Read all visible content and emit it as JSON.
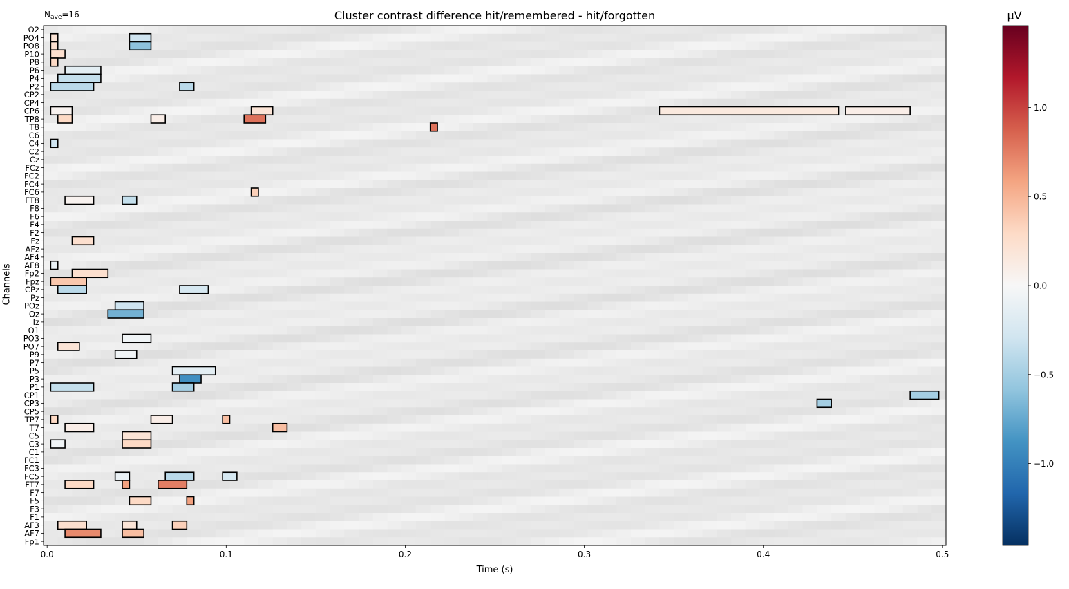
{
  "annotation": {
    "nave_prefix": "N",
    "nave_sub": "ave",
    "nave_suffix": "=16"
  },
  "chart_data": {
    "type": "heatmap",
    "title": "Cluster contrast difference hit/remembered - hit/forgotten",
    "xlabel": "Time (s)",
    "ylabel": "Channels",
    "colorbar_label": "µV",
    "xlim": [
      -0.002,
      0.502
    ],
    "x_ticks": [
      0.0,
      0.1,
      0.2,
      0.3,
      0.4,
      0.5
    ],
    "x_tick_labels": [
      "0.0",
      "0.1",
      "0.2",
      "0.3",
      "0.4",
      "0.5"
    ],
    "clim": [
      -1.46,
      1.46
    ],
    "colorbar_ticks": [
      1.0,
      0.5,
      0.0,
      -0.5,
      -1.0
    ],
    "colorbar_tick_labels": [
      "1.0",
      "0.5",
      "0.0",
      "−0.5",
      "−1.0"
    ],
    "colormap": [
      "#053061",
      "#2166ac",
      "#4393c3",
      "#92c5de",
      "#d1e5f0",
      "#f7f7f7",
      "#fddbc7",
      "#f4a582",
      "#d6604d",
      "#b2182b",
      "#67001f"
    ],
    "channels": [
      "O2",
      "PO4",
      "PO8",
      "P10",
      "P8",
      "P6",
      "P4",
      "P2",
      "CP2",
      "CP4",
      "CP6",
      "TP8",
      "T8",
      "C6",
      "C4",
      "C2",
      "Cz",
      "FCz",
      "FC2",
      "FC4",
      "FC6",
      "FT8",
      "F8",
      "F6",
      "F4",
      "F2",
      "Fz",
      "AFz",
      "AF4",
      "AF8",
      "Fp2",
      "Fpz",
      "CPz",
      "Pz",
      "POz",
      "Oz",
      "Iz",
      "O1",
      "PO3",
      "PO7",
      "P9",
      "P7",
      "P5",
      "P3",
      "P1",
      "CP1",
      "CP3",
      "CP5",
      "TP7",
      "T7",
      "C5",
      "C3",
      "C1",
      "FC1",
      "FC3",
      "FC5",
      "FT7",
      "F7",
      "F5",
      "F3",
      "F1",
      "AF3",
      "AF7",
      "Fp1"
    ],
    "clusters": [
      {
        "channel": "PO4",
        "t0": 0.002,
        "t1": 0.006,
        "value": 0.2
      },
      {
        "channel": "PO8",
        "t0": 0.002,
        "t1": 0.006,
        "value": 0.25
      },
      {
        "channel": "P10",
        "t0": 0.002,
        "t1": 0.01,
        "value": 0.25
      },
      {
        "channel": "P8",
        "t0": 0.002,
        "t1": 0.006,
        "value": 0.3
      },
      {
        "channel": "PO4",
        "t0": 0.046,
        "t1": 0.058,
        "value": -0.3
      },
      {
        "channel": "PO8",
        "t0": 0.046,
        "t1": 0.058,
        "value": -0.6
      },
      {
        "channel": "P6",
        "t0": 0.01,
        "t1": 0.03,
        "value": -0.15
      },
      {
        "channel": "P4",
        "t0": 0.006,
        "t1": 0.03,
        "value": -0.35
      },
      {
        "channel": "P2",
        "t0": 0.002,
        "t1": 0.026,
        "value": -0.4
      },
      {
        "channel": "P2",
        "t0": 0.074,
        "t1": 0.082,
        "value": -0.4
      },
      {
        "channel": "CP6",
        "t0": 0.002,
        "t1": 0.014,
        "value": 0.05
      },
      {
        "channel": "TP8",
        "t0": 0.006,
        "t1": 0.014,
        "value": 0.3
      },
      {
        "channel": "CP6",
        "t0": 0.114,
        "t1": 0.126,
        "value": 0.2
      },
      {
        "channel": "TP8",
        "t0": 0.11,
        "t1": 0.122,
        "value": 0.8
      },
      {
        "channel": "TP8",
        "t0": 0.058,
        "t1": 0.066,
        "value": 0.1
      },
      {
        "channel": "T8",
        "t0": 0.214,
        "t1": 0.218,
        "value": 0.8
      },
      {
        "channel": "CP6",
        "t0": 0.342,
        "t1": 0.442,
        "value": 0.15
      },
      {
        "channel": "CP6",
        "t0": 0.446,
        "t1": 0.482,
        "value": 0.1
      },
      {
        "channel": "C4",
        "t0": 0.002,
        "t1": 0.006,
        "value": -0.3
      },
      {
        "channel": "FC6",
        "t0": 0.114,
        "t1": 0.118,
        "value": 0.35
      },
      {
        "channel": "FT8",
        "t0": 0.01,
        "t1": 0.026,
        "value": 0.05
      },
      {
        "channel": "FT8",
        "t0": 0.042,
        "t1": 0.05,
        "value": -0.35
      },
      {
        "channel": "Fz",
        "t0": 0.014,
        "t1": 0.026,
        "value": 0.25
      },
      {
        "channel": "AF8",
        "t0": 0.002,
        "t1": 0.006,
        "value": -0.1
      },
      {
        "channel": "Fp2",
        "t0": 0.014,
        "t1": 0.034,
        "value": 0.25
      },
      {
        "channel": "Fpz",
        "t0": 0.002,
        "t1": 0.022,
        "value": 0.4
      },
      {
        "channel": "CPz",
        "t0": 0.006,
        "t1": 0.022,
        "value": -0.4
      },
      {
        "channel": "CPz",
        "t0": 0.074,
        "t1": 0.09,
        "value": -0.25
      },
      {
        "channel": "POz",
        "t0": 0.038,
        "t1": 0.054,
        "value": -0.3
      },
      {
        "channel": "Oz",
        "t0": 0.034,
        "t1": 0.054,
        "value": -0.7
      },
      {
        "channel": "PO3",
        "t0": 0.042,
        "t1": 0.058,
        "value": -0.05
      },
      {
        "channel": "PO7",
        "t0": 0.006,
        "t1": 0.018,
        "value": 0.2
      },
      {
        "channel": "P9",
        "t0": 0.038,
        "t1": 0.05,
        "value": -0.05
      },
      {
        "channel": "P5",
        "t0": 0.07,
        "t1": 0.094,
        "value": -0.15
      },
      {
        "channel": "P3",
        "t0": 0.074,
        "t1": 0.086,
        "value": -0.9
      },
      {
        "channel": "P1",
        "t0": 0.002,
        "t1": 0.026,
        "value": -0.35
      },
      {
        "channel": "P1",
        "t0": 0.07,
        "t1": 0.082,
        "value": -0.5
      },
      {
        "channel": "CP1",
        "t0": 0.482,
        "t1": 0.498,
        "value": -0.5
      },
      {
        "channel": "CP3",
        "t0": 0.43,
        "t1": 0.438,
        "value": -0.5
      },
      {
        "channel": "TP7",
        "t0": 0.002,
        "t1": 0.006,
        "value": 0.3
      },
      {
        "channel": "TP7",
        "t0": 0.058,
        "t1": 0.07,
        "value": 0.1
      },
      {
        "channel": "TP7",
        "t0": 0.098,
        "t1": 0.102,
        "value": 0.45
      },
      {
        "channel": "T7",
        "t0": 0.01,
        "t1": 0.026,
        "value": 0.1
      },
      {
        "channel": "T7",
        "t0": 0.126,
        "t1": 0.134,
        "value": 0.45
      },
      {
        "channel": "C5",
        "t0": 0.042,
        "t1": 0.058,
        "value": 0.2
      },
      {
        "channel": "C3",
        "t0": 0.042,
        "t1": 0.058,
        "value": 0.3
      },
      {
        "channel": "C3",
        "t0": 0.002,
        "t1": 0.01,
        "value": -0.05
      },
      {
        "channel": "FC5",
        "t0": 0.038,
        "t1": 0.046,
        "value": -0.1
      },
      {
        "channel": "FC5",
        "t0": 0.066,
        "t1": 0.082,
        "value": -0.4
      },
      {
        "channel": "FC5",
        "t0": 0.098,
        "t1": 0.106,
        "value": -0.25
      },
      {
        "channel": "FT7",
        "t0": 0.01,
        "t1": 0.026,
        "value": 0.3
      },
      {
        "channel": "FT7",
        "t0": 0.042,
        "t1": 0.046,
        "value": 0.6
      },
      {
        "channel": "FT7",
        "t0": 0.062,
        "t1": 0.078,
        "value": 0.75
      },
      {
        "channel": "F5",
        "t0": 0.046,
        "t1": 0.058,
        "value": 0.3
      },
      {
        "channel": "F5",
        "t0": 0.078,
        "t1": 0.082,
        "value": 0.6
      },
      {
        "channel": "AF3",
        "t0": 0.006,
        "t1": 0.022,
        "value": 0.25
      },
      {
        "channel": "AF3",
        "t0": 0.042,
        "t1": 0.05,
        "value": 0.2
      },
      {
        "channel": "AF3",
        "t0": 0.07,
        "t1": 0.078,
        "value": 0.35
      },
      {
        "channel": "AF7",
        "t0": 0.01,
        "t1": 0.03,
        "value": 0.7
      },
      {
        "channel": "AF7",
        "t0": 0.042,
        "t1": 0.054,
        "value": 0.45
      }
    ]
  }
}
